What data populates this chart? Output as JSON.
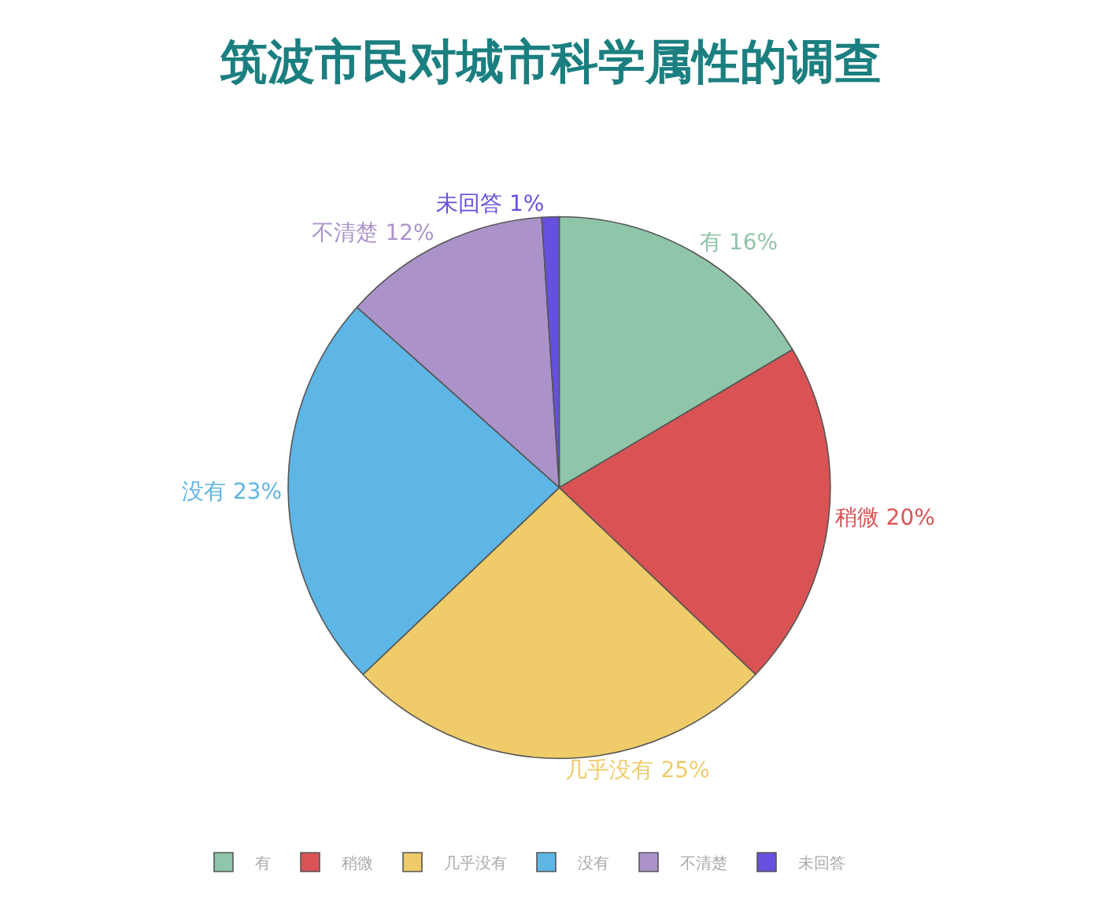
{
  "chart_data": {
    "type": "pie",
    "title": "筑波市民对城市科学属性的调查",
    "categories": [
      "有",
      "稍微",
      "几乎没有",
      "没有",
      "不清楚",
      "未回答"
    ],
    "values": [
      16,
      20,
      25,
      23,
      12,
      1
    ],
    "value_labels": [
      "16%",
      "20%",
      "25%",
      "23%",
      "12%",
      "1%"
    ],
    "colors": [
      "#8fc5a8",
      "#d95355",
      "#efcb69",
      "#5db6e5",
      "#ab93c9",
      "#6650e0"
    ],
    "legend": "bottom"
  }
}
